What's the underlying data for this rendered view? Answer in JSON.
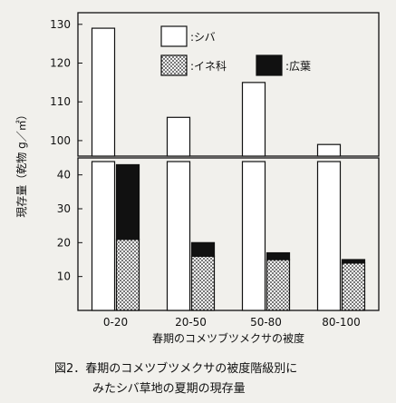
{
  "chart_data": {
    "type": "bar",
    "stacked": true,
    "broken_axis": true,
    "categories": [
      "0-20",
      "20-50",
      "50-80",
      "80-100"
    ],
    "series": [
      {
        "name": "シバ",
        "values": [
          129,
          106,
          115,
          99
        ],
        "pattern": "white"
      },
      {
        "name": "イネ科",
        "values": [
          21,
          16,
          15,
          14
        ],
        "pattern": "dots"
      },
      {
        "name": "広葉",
        "values": [
          22,
          4,
          2,
          1
        ],
        "pattern": "black"
      }
    ],
    "ylabel": "現存量（乾物 g／㎡）",
    "xlabel": "春期のコメツブツメクサの被度",
    "yticks_upper": [
      100,
      110,
      120,
      130
    ],
    "yticks_lower": [
      10,
      20,
      30,
      40
    ],
    "ylim_upper": [
      96,
      133
    ],
    "ylim_lower": [
      0,
      45
    ],
    "grid": false,
    "legend_position": "top",
    "legend_prefix": ":"
  },
  "caption": {
    "line1": "図2．春期のコメツブツメクサの被度階級別に",
    "line2": "みたシバ草地の夏期の現存量"
  }
}
